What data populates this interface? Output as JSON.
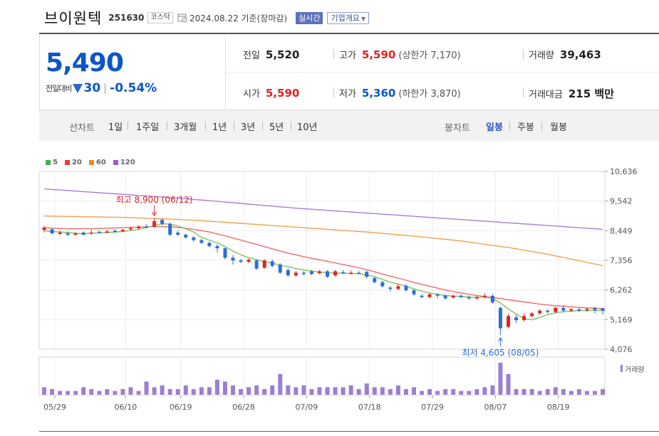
{
  "header": {
    "stock_name": "브이원텍",
    "stock_code": "251630",
    "market": "코스닥",
    "date_text": "2024.08.22 기준(장마감)",
    "realtime_label": "실시간",
    "company_info_label": "기업개요"
  },
  "price": {
    "current": "5,490",
    "change_label": "전일대비",
    "change_value": "30",
    "change_pct": "-0.54%"
  },
  "stats": {
    "prev_close_label": "전일",
    "prev_close": "5,520",
    "high_label": "고가",
    "high": "5,590",
    "upper_limit": "(상한가 7,170)",
    "volume_label": "거래량",
    "volume": "39,463",
    "open_label": "시가",
    "open": "5,590",
    "low_label": "저가",
    "low": "5,360",
    "lower_limit": "(하한가 3,870)",
    "amount_label": "거래대금",
    "amount": "215 백만"
  },
  "period_bar": {
    "line_label": "선차트",
    "line_options": [
      "1일",
      "1주일",
      "3개월",
      "1년",
      "3년",
      "5년",
      "10년"
    ],
    "candle_label": "봉차트",
    "candle_options": [
      "일봉",
      "주봉",
      "월봉"
    ],
    "selected_candle": "일봉"
  },
  "colors": {
    "up": "#e12222",
    "down": "#2b6fd6",
    "ma5": "#7cc25c",
    "ma20": "#f06a6a",
    "ma60": "#f3a14b",
    "ma120": "#a77fd8",
    "volume": "#9b7fd4"
  },
  "chart_data": {
    "type": "candlestick",
    "legend": [
      "5",
      "20",
      "60",
      "120"
    ],
    "y_ticks": [
      "10,636",
      "9,542",
      "8,449",
      "7,356",
      "6,262",
      "5,169",
      "4,076"
    ],
    "ylim": [
      4076,
      10636
    ],
    "x_tick_labels": [
      "05/29",
      "06/10",
      "06/19",
      "06/28",
      "07/09",
      "07/18",
      "07/29",
      "08/07",
      "08/19"
    ],
    "high_annotation": "최고 8,900 (06/12)",
    "low_annotation": "최저 4,605 (08/05)",
    "volume_label": "거래량",
    "candles": [
      {
        "o": 8480,
        "c": 8560,
        "h": 8620,
        "l": 8380
      },
      {
        "o": 8500,
        "c": 8350,
        "h": 8560,
        "l": 8300
      },
      {
        "o": 8330,
        "c": 8380,
        "h": 8440,
        "l": 8280
      },
      {
        "o": 8350,
        "c": 8300,
        "h": 8420,
        "l": 8250
      },
      {
        "o": 8300,
        "c": 8350,
        "h": 8400,
        "l": 8260
      },
      {
        "o": 8380,
        "c": 8300,
        "h": 8420,
        "l": 8280
      },
      {
        "o": 8350,
        "c": 8380,
        "h": 8480,
        "l": 8300
      },
      {
        "o": 8400,
        "c": 8380,
        "h": 8460,
        "l": 8350
      },
      {
        "o": 8380,
        "c": 8420,
        "h": 8480,
        "l": 8360
      },
      {
        "o": 8450,
        "c": 8400,
        "h": 8500,
        "l": 8370
      },
      {
        "o": 8430,
        "c": 8480,
        "h": 8520,
        "l": 8400
      },
      {
        "o": 8500,
        "c": 8540,
        "h": 8600,
        "l": 8450
      },
      {
        "o": 8540,
        "c": 8600,
        "h": 8640,
        "l": 8500
      },
      {
        "o": 8600,
        "c": 8580,
        "h": 8680,
        "l": 8540
      },
      {
        "o": 8600,
        "c": 8800,
        "h": 8900,
        "l": 8560
      },
      {
        "o": 8850,
        "c": 8700,
        "h": 8900,
        "l": 8650
      },
      {
        "o": 8700,
        "c": 8300,
        "h": 8750,
        "l": 8250
      },
      {
        "o": 8380,
        "c": 8300,
        "h": 8450,
        "l": 8250
      },
      {
        "o": 8300,
        "c": 8200,
        "h": 8350,
        "l": 8150
      },
      {
        "o": 8200,
        "c": 8100,
        "h": 8250,
        "l": 8050
      },
      {
        "o": 8100,
        "c": 8000,
        "h": 8150,
        "l": 7950
      },
      {
        "o": 8000,
        "c": 7880,
        "h": 8050,
        "l": 7830
      },
      {
        "o": 7880,
        "c": 7800,
        "h": 7950,
        "l": 7650
      },
      {
        "o": 7800,
        "c": 7450,
        "h": 7830,
        "l": 7380
      },
      {
        "o": 7450,
        "c": 7350,
        "h": 7550,
        "l": 7200
      },
      {
        "o": 7350,
        "c": 7300,
        "h": 7420,
        "l": 7250
      },
      {
        "o": 7300,
        "c": 7380,
        "h": 7420,
        "l": 7250
      },
      {
        "o": 7350,
        "c": 7050,
        "h": 7400,
        "l": 7000
      },
      {
        "o": 7080,
        "c": 7350,
        "h": 7400,
        "l": 7050
      },
      {
        "o": 7320,
        "c": 7150,
        "h": 7380,
        "l": 7100
      },
      {
        "o": 7200,
        "c": 6900,
        "h": 7250,
        "l": 6850
      },
      {
        "o": 7000,
        "c": 6800,
        "h": 7050,
        "l": 6750
      },
      {
        "o": 6800,
        "c": 6900,
        "h": 6960,
        "l": 6750
      },
      {
        "o": 6900,
        "c": 6850,
        "h": 6960,
        "l": 6800
      },
      {
        "o": 6950,
        "c": 6850,
        "h": 7000,
        "l": 6800
      },
      {
        "o": 6880,
        "c": 6950,
        "h": 7000,
        "l": 6850
      },
      {
        "o": 6950,
        "c": 6750,
        "h": 7000,
        "l": 6700
      },
      {
        "o": 6800,
        "c": 6950,
        "h": 7000,
        "l": 6750
      },
      {
        "o": 6920,
        "c": 6880,
        "h": 7000,
        "l": 6850
      },
      {
        "o": 6880,
        "c": 6900,
        "h": 6980,
        "l": 6830
      },
      {
        "o": 6900,
        "c": 6880,
        "h": 6960,
        "l": 6850
      },
      {
        "o": 6930,
        "c": 6750,
        "h": 6980,
        "l": 6700
      },
      {
        "o": 6700,
        "c": 6550,
        "h": 6750,
        "l": 6500
      },
      {
        "o": 6550,
        "c": 6400,
        "h": 6600,
        "l": 6350
      },
      {
        "o": 6350,
        "c": 6300,
        "h": 6400,
        "l": 6200
      },
      {
        "o": 6300,
        "c": 6400,
        "h": 6500,
        "l": 6250
      },
      {
        "o": 6420,
        "c": 6250,
        "h": 6480,
        "l": 6200
      },
      {
        "o": 6250,
        "c": 6100,
        "h": 6300,
        "l": 6050
      },
      {
        "o": 6050,
        "c": 6000,
        "h": 6100,
        "l": 5950
      },
      {
        "o": 6000,
        "c": 6100,
        "h": 6150,
        "l": 5950
      },
      {
        "o": 6100,
        "c": 6050,
        "h": 6150,
        "l": 5950
      },
      {
        "o": 6050,
        "c": 5950,
        "h": 6100,
        "l": 5900
      },
      {
        "o": 5980,
        "c": 6050,
        "h": 6100,
        "l": 5950
      },
      {
        "o": 6050,
        "c": 6000,
        "h": 6100,
        "l": 5950
      },
      {
        "o": 6000,
        "c": 5950,
        "h": 6050,
        "l": 5900
      },
      {
        "o": 5950,
        "c": 6000,
        "h": 6050,
        "l": 5900
      },
      {
        "o": 6000,
        "c": 6050,
        "h": 6130,
        "l": 5950
      },
      {
        "o": 6050,
        "c": 5800,
        "h": 6100,
        "l": 5750
      },
      {
        "o": 5600,
        "c": 4850,
        "h": 5650,
        "l": 4605
      },
      {
        "o": 4900,
        "c": 5300,
        "h": 5400,
        "l": 4850
      },
      {
        "o": 5250,
        "c": 5150,
        "h": 5350,
        "l": 5050
      },
      {
        "o": 5150,
        "c": 5300,
        "h": 5400,
        "l": 5100
      },
      {
        "o": 5300,
        "c": 5400,
        "h": 5450,
        "l": 5250
      },
      {
        "o": 5400,
        "c": 5500,
        "h": 5550,
        "l": 5350
      },
      {
        "o": 5500,
        "c": 5450,
        "h": 5550,
        "l": 5400
      },
      {
        "o": 5450,
        "c": 5600,
        "h": 5650,
        "l": 5400
      },
      {
        "o": 5600,
        "c": 5500,
        "h": 5700,
        "l": 5450
      },
      {
        "o": 5500,
        "c": 5550,
        "h": 5600,
        "l": 5450
      },
      {
        "o": 5550,
        "c": 5500,
        "h": 5600,
        "l": 5450
      },
      {
        "o": 5520,
        "c": 5560,
        "h": 5620,
        "l": 5450
      },
      {
        "o": 5600,
        "c": 5520,
        "h": 5640,
        "l": 5400
      },
      {
        "o": 5590,
        "c": 5490,
        "h": 5590,
        "l": 5360
      }
    ],
    "ma5": [
      8450,
      8420,
      8400,
      8380,
      8350,
      8340,
      8360,
      8370,
      8380,
      8400,
      8420,
      8460,
      8500,
      8560,
      8640,
      8700,
      8700,
      8620,
      8520,
      8400,
      8200,
      8100,
      8000,
      7860,
      7700,
      7560,
      7450,
      7380,
      7300,
      7250,
      7180,
      7120,
      7050,
      7000,
      6960,
      6920,
      6900,
      6880,
      6880,
      6870,
      6860,
      6820,
      6750,
      6650,
      6550,
      6480,
      6400,
      6300,
      6220,
      6150,
      6100,
      6060,
      6040,
      6020,
      6000,
      5990,
      6000,
      5950,
      5780,
      5560,
      5380,
      5200,
      5160,
      5250,
      5350,
      5420,
      5460,
      5480,
      5500,
      5500,
      5510,
      5510
    ],
    "ma20": [
      8560,
      8540,
      8530,
      8520,
      8520,
      8520,
      8520,
      8530,
      8540,
      8550,
      8560,
      8570,
      8580,
      8590,
      8600,
      8600,
      8590,
      8570,
      8540,
      8500,
      8450,
      8400,
      8330,
      8260,
      8180,
      8100,
      8020,
      7940,
      7860,
      7780,
      7700,
      7620,
      7560,
      7490,
      7430,
      7380,
      7320,
      7260,
      7200,
      7140,
      7080,
      7010,
      6930,
      6850,
      6770,
      6700,
      6620,
      6540,
      6470,
      6400,
      6330,
      6260,
      6200,
      6150,
      6100,
      6060,
      6020,
      5980,
      5950,
      5900,
      5860,
      5820,
      5780,
      5740,
      5710,
      5680,
      5660,
      5640,
      5620,
      5600,
      5590,
      5580
    ],
    "ma60": [
      8990,
      8985,
      8980,
      8975,
      8970,
      8965,
      8960,
      8955,
      8950,
      8945,
      8940,
      8930,
      8920,
      8910,
      8900,
      8890,
      8880,
      8865,
      8850,
      8835,
      8820,
      8800,
      8780,
      8760,
      8740,
      8720,
      8700,
      8680,
      8660,
      8640,
      8620,
      8600,
      8580,
      8560,
      8540,
      8520,
      8500,
      8480,
      8460,
      8440,
      8420,
      8400,
      8375,
      8350,
      8325,
      8300,
      8275,
      8250,
      8220,
      8190,
      8160,
      8130,
      8100,
      8070,
      8030,
      7990,
      7950,
      7910,
      7870,
      7830,
      7780,
      7730,
      7680,
      7630,
      7580,
      7520,
      7460,
      7400,
      7340,
      7280,
      7220,
      7160
    ],
    "ma120": [
      9990,
      9970,
      9950,
      9930,
      9910,
      9890,
      9870,
      9850,
      9830,
      9810,
      9790,
      9770,
      9750,
      9730,
      9710,
      9690,
      9670,
      9650,
      9630,
      9605,
      9580,
      9555,
      9530,
      9505,
      9480,
      9455,
      9430,
      9405,
      9380,
      9355,
      9330,
      9305,
      9280,
      9260,
      9240,
      9220,
      9200,
      9180,
      9160,
      9140,
      9120,
      9100,
      9080,
      9060,
      9040,
      9020,
      9000,
      8980,
      8960,
      8940,
      8920,
      8900,
      8880,
      8860,
      8840,
      8820,
      8800,
      8780,
      8760,
      8740,
      8720,
      8700,
      8680,
      8660,
      8640,
      8620,
      8600,
      8580,
      8560,
      8540,
      8520,
      8500
    ],
    "volume": [
      4,
      3,
      2,
      2,
      2,
      4,
      3,
      2,
      3,
      2,
      3,
      4,
      2,
      7,
      4,
      5,
      3,
      3,
      5,
      3,
      4,
      4,
      8,
      7,
      5,
      3,
      4,
      5,
      3,
      5,
      11,
      5,
      4,
      5,
      3,
      4,
      4,
      4,
      4,
      5,
      3,
      6,
      4,
      4,
      3,
      5,
      3,
      4,
      2,
      3,
      2,
      3,
      3,
      2,
      2,
      3,
      4,
      5,
      17,
      11,
      3,
      3,
      3,
      2,
      3,
      4,
      3,
      2,
      3,
      2,
      2,
      3
    ]
  }
}
